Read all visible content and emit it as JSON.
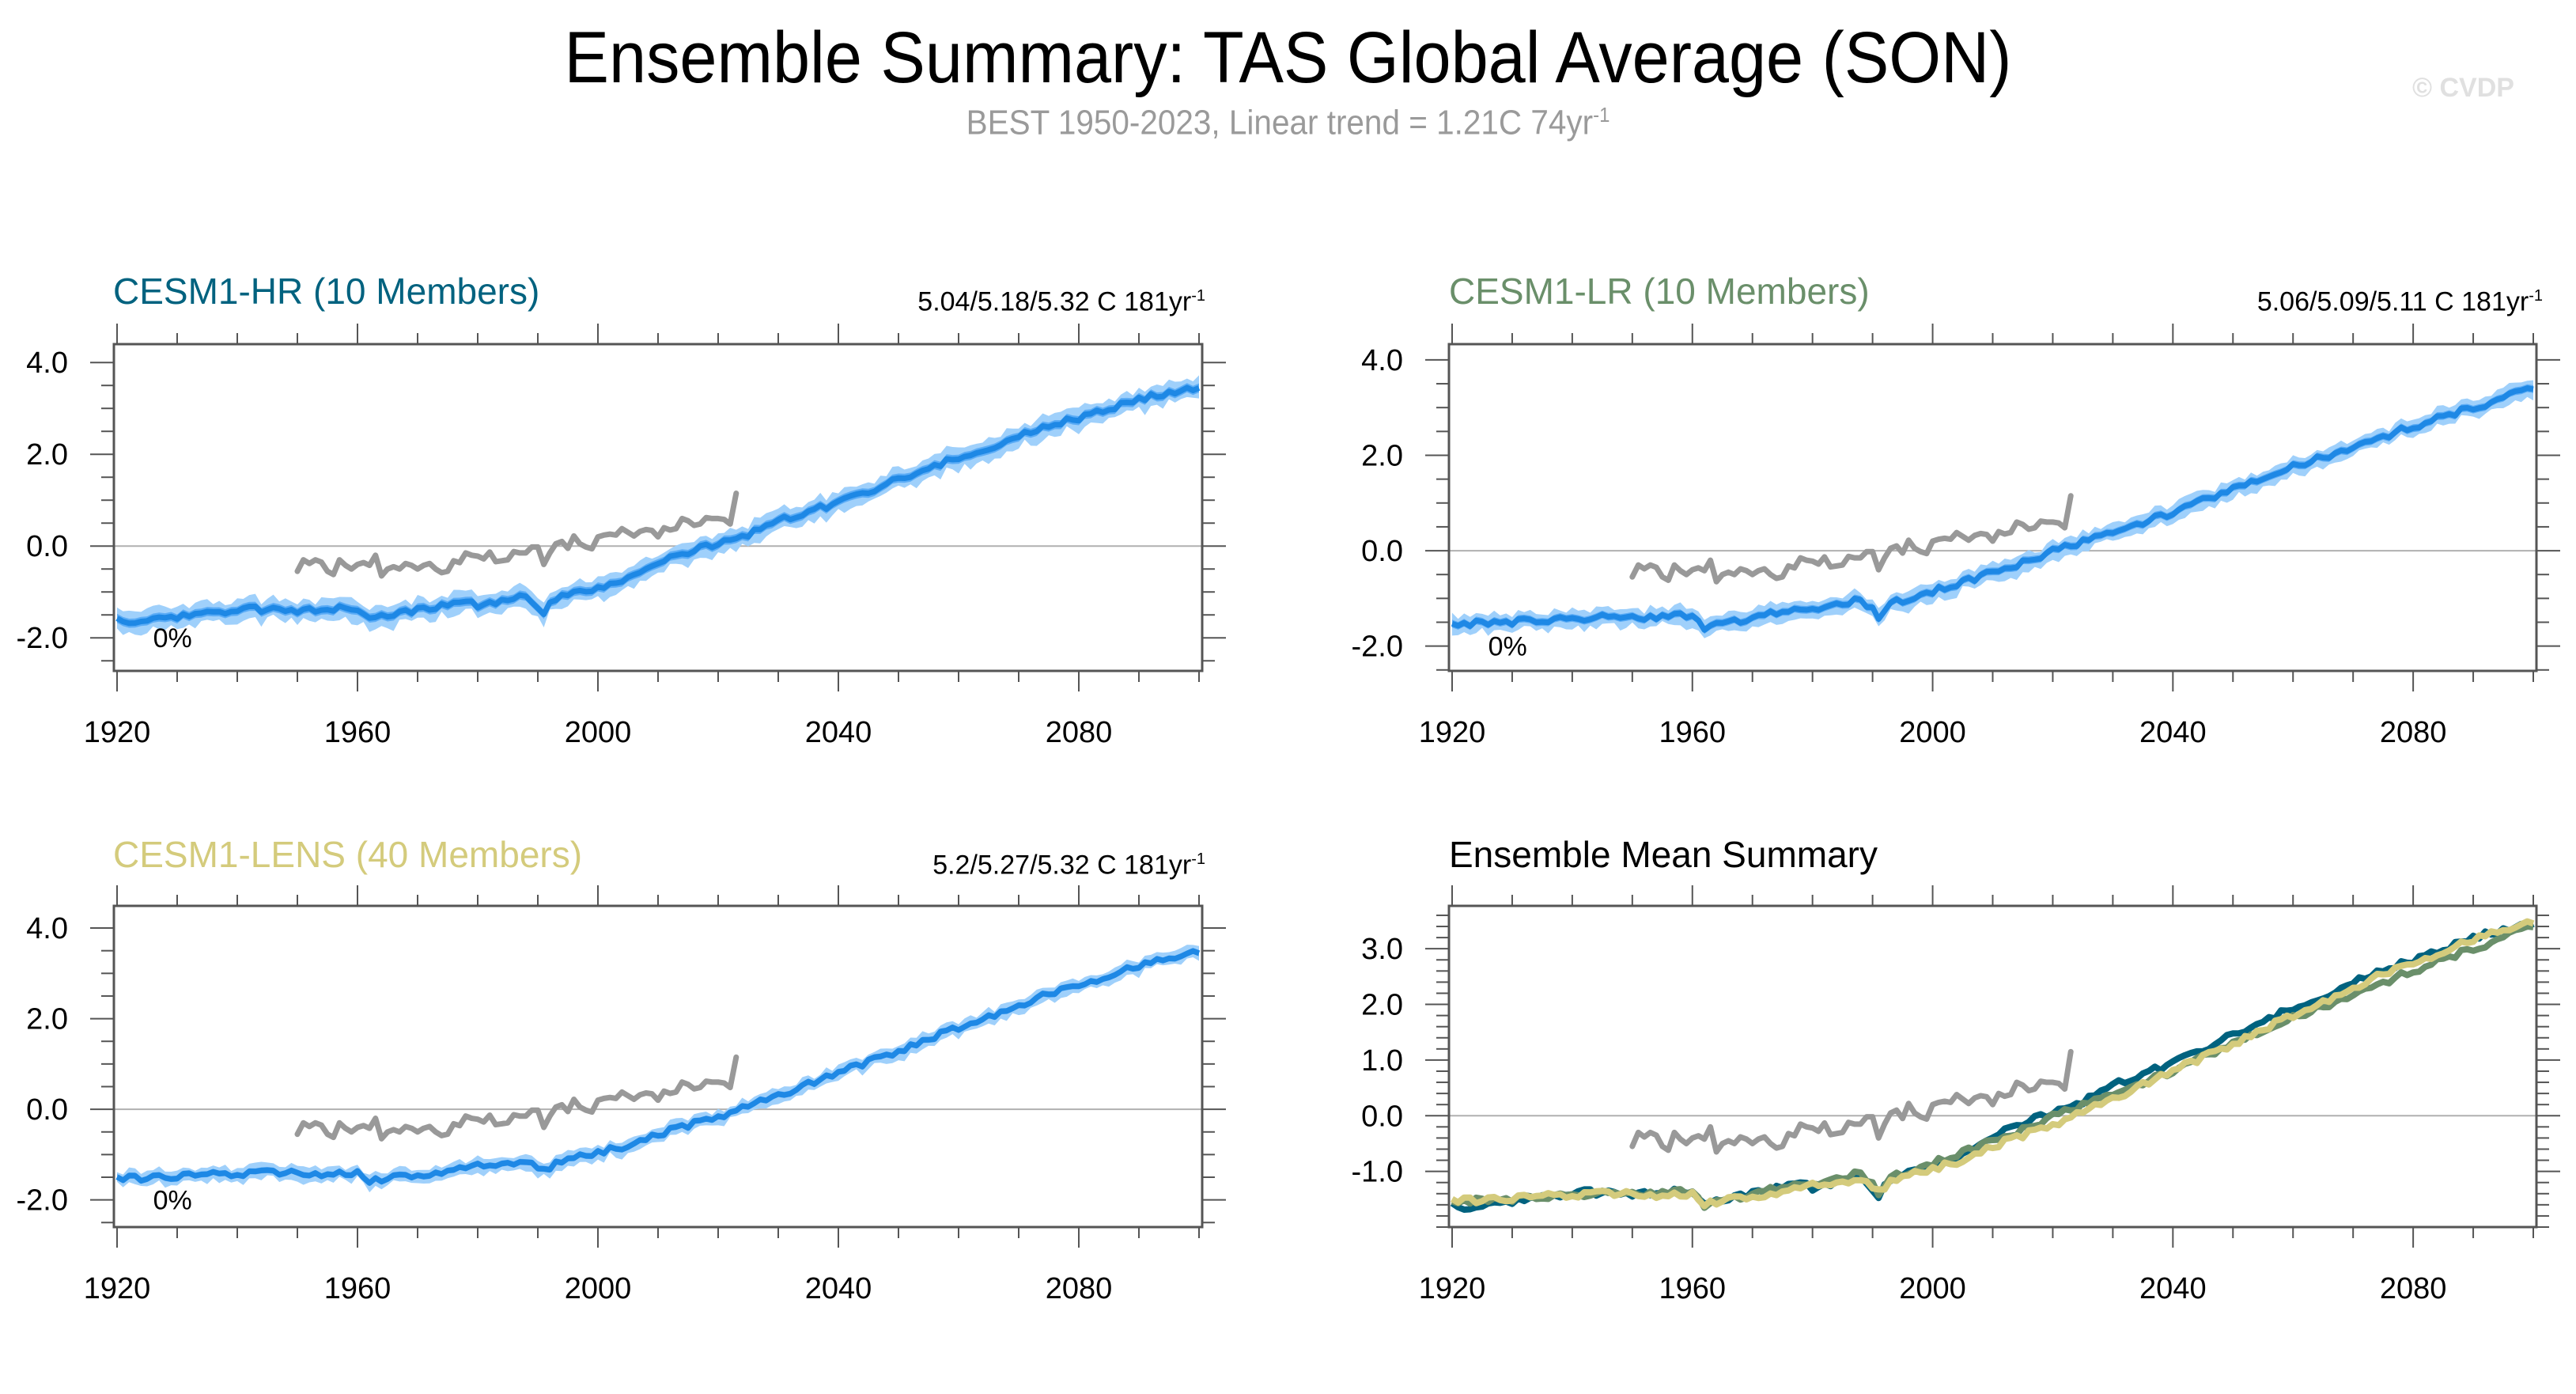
{
  "header": {
    "title": "Ensemble Summary: TAS Global Average (SON)",
    "subtitle_main": "BEST 1950-2023, Linear trend = 1.21C 74yr",
    "subtitle_sup": "-1",
    "watermark": "© CVDP"
  },
  "colors": {
    "spread_outer": "#9fd0fb",
    "spread_inner": "#4aa3f5",
    "mean_line": "#1e88e5",
    "obs_line": "#999999",
    "zero_line": "#b0b0b0",
    "axis": "#555555",
    "hr": "#00627f",
    "lr": "#6a8f6a",
    "lens": "#d4cb7c"
  },
  "chart_data": [
    {
      "type": "area",
      "id": "hr",
      "title": "CESM1-HR (10 Members)",
      "title_color": "#00627f",
      "stat_main": "5.04/5.18/5.32 C 181yr",
      "stat_sup": "-1",
      "annotation": "0%",
      "xlim": [
        1920,
        2100
      ],
      "ylim": [
        -2.72,
        4.4
      ],
      "x_ticks": [
        1920,
        1960,
        2000,
        2040,
        2080
      ],
      "y_ticks": [
        -2.0,
        0.0,
        2.0,
        4.0
      ],
      "y_tick_labels": [
        "-2.0",
        "0.0",
        "2.0",
        "4.0"
      ],
      "y_minor_step": 0.5,
      "mean": [
        [
          1920,
          -1.55
        ],
        [
          1922,
          -1.72
        ],
        [
          1926,
          -1.62
        ],
        [
          1930,
          -1.55
        ],
        [
          1935,
          -1.45
        ],
        [
          1940,
          -1.38
        ],
        [
          1945,
          -1.38
        ],
        [
          1950,
          -1.4
        ],
        [
          1955,
          -1.38
        ],
        [
          1960,
          -1.35
        ],
        [
          1962,
          -1.62
        ],
        [
          1966,
          -1.5
        ],
        [
          1970,
          -1.4
        ],
        [
          1975,
          -1.25
        ],
        [
          1978,
          -1.15
        ],
        [
          1980,
          -1.35
        ],
        [
          1985,
          -1.15
        ],
        [
          1988,
          -1.05
        ],
        [
          1991,
          -1.42
        ],
        [
          1993,
          -1.12
        ],
        [
          1997,
          -0.95
        ],
        [
          2000,
          -0.9
        ],
        [
          2005,
          -0.7
        ],
        [
          2010,
          -0.45
        ],
        [
          2013,
          -0.2
        ],
        [
          2016,
          -0.1
        ],
        [
          2020,
          0.05
        ],
        [
          2025,
          0.25
        ],
        [
          2030,
          0.55
        ],
        [
          2035,
          0.75
        ],
        [
          2040,
          0.95
        ],
        [
          2045,
          1.2
        ],
        [
          2050,
          1.45
        ],
        [
          2055,
          1.7
        ],
        [
          2060,
          1.95
        ],
        [
          2065,
          2.15
        ],
        [
          2070,
          2.4
        ],
        [
          2075,
          2.6
        ],
        [
          2080,
          2.8
        ],
        [
          2085,
          3.0
        ],
        [
          2090,
          3.2
        ],
        [
          2095,
          3.35
        ],
        [
          2100,
          3.45
        ]
      ],
      "spread": 0.22,
      "obs": [
        [
          1950,
          -0.55
        ],
        [
          1951,
          -0.3
        ],
        [
          1952,
          -0.38
        ],
        [
          1953,
          -0.3
        ],
        [
          1954,
          -0.35
        ],
        [
          1955,
          -0.55
        ],
        [
          1956,
          -0.62
        ],
        [
          1957,
          -0.3
        ],
        [
          1958,
          -0.42
        ],
        [
          1959,
          -0.5
        ],
        [
          1960,
          -0.4
        ],
        [
          1961,
          -0.36
        ],
        [
          1962,
          -0.42
        ],
        [
          1963,
          -0.2
        ],
        [
          1964,
          -0.65
        ],
        [
          1965,
          -0.5
        ],
        [
          1966,
          -0.45
        ],
        [
          1967,
          -0.5
        ],
        [
          1968,
          -0.38
        ],
        [
          1969,
          -0.42
        ],
        [
          1970,
          -0.5
        ],
        [
          1971,
          -0.42
        ],
        [
          1972,
          -0.38
        ],
        [
          1973,
          -0.5
        ],
        [
          1974,
          -0.58
        ],
        [
          1975,
          -0.55
        ],
        [
          1976,
          -0.32
        ],
        [
          1977,
          -0.36
        ],
        [
          1978,
          -0.15
        ],
        [
          1979,
          -0.2
        ],
        [
          1980,
          -0.22
        ],
        [
          1981,
          -0.28
        ],
        [
          1982,
          -0.13
        ],
        [
          1983,
          -0.34
        ],
        [
          1984,
          -0.32
        ],
        [
          1985,
          -0.3
        ],
        [
          1986,
          -0.12
        ],
        [
          1987,
          -0.15
        ],
        [
          1988,
          -0.15
        ],
        [
          1989,
          -0.02
        ],
        [
          1990,
          -0.02
        ],
        [
          1991,
          -0.4
        ],
        [
          1992,
          -0.15
        ],
        [
          1993,
          0.05
        ],
        [
          1994,
          0.1
        ],
        [
          1995,
          -0.05
        ],
        [
          1996,
          0.22
        ],
        [
          1997,
          0.05
        ],
        [
          1998,
          -0.02
        ],
        [
          1999,
          -0.06
        ],
        [
          2000,
          0.2
        ],
        [
          2001,
          0.24
        ],
        [
          2002,
          0.26
        ],
        [
          2003,
          0.24
        ],
        [
          2004,
          0.38
        ],
        [
          2005,
          0.3
        ],
        [
          2006,
          0.22
        ],
        [
          2007,
          0.32
        ],
        [
          2008,
          0.36
        ],
        [
          2009,
          0.34
        ],
        [
          2010,
          0.2
        ],
        [
          2011,
          0.4
        ],
        [
          2012,
          0.35
        ],
        [
          2013,
          0.38
        ],
        [
          2014,
          0.6
        ],
        [
          2015,
          0.55
        ],
        [
          2016,
          0.45
        ],
        [
          2017,
          0.48
        ],
        [
          2018,
          0.62
        ],
        [
          2019,
          0.6
        ],
        [
          2020,
          0.6
        ],
        [
          2021,
          0.58
        ],
        [
          2022,
          0.48
        ],
        [
          2023,
          1.15
        ]
      ]
    },
    {
      "type": "area",
      "id": "lr",
      "title": "CESM1-LR (10 Members)",
      "title_color": "#6a8f6a",
      "stat_main": "5.06/5.09/5.11 C 181yr",
      "stat_sup": "-1",
      "annotation": "0%",
      "xlim": [
        1920,
        2100
      ],
      "ylim": [
        -2.52,
        4.33
      ],
      "x_ticks": [
        1920,
        1960,
        2000,
        2040,
        2080
      ],
      "y_ticks": [
        -2.0,
        0.0,
        2.0,
        4.0
      ],
      "y_tick_labels": [
        "-2.0",
        "0.0",
        "2.0",
        "4.0"
      ],
      "y_minor_step": 0.5,
      "mean": [
        [
          1920,
          -1.58
        ],
        [
          1925,
          -1.52
        ],
        [
          1930,
          -1.5
        ],
        [
          1935,
          -1.45
        ],
        [
          1940,
          -1.42
        ],
        [
          1945,
          -1.4
        ],
        [
          1950,
          -1.38
        ],
        [
          1955,
          -1.4
        ],
        [
          1960,
          -1.35
        ],
        [
          1962,
          -1.6
        ],
        [
          1966,
          -1.5
        ],
        [
          1970,
          -1.4
        ],
        [
          1975,
          -1.3
        ],
        [
          1980,
          -1.2
        ],
        [
          1985,
          -1.1
        ],
        [
          1988,
          -0.98
        ],
        [
          1991,
          -1.38
        ],
        [
          1993,
          -1.12
        ],
        [
          1997,
          -0.95
        ],
        [
          2000,
          -0.85
        ],
        [
          2005,
          -0.65
        ],
        [
          2010,
          -0.45
        ],
        [
          2015,
          -0.25
        ],
        [
          2020,
          0.0
        ],
        [
          2025,
          0.2
        ],
        [
          2030,
          0.4
        ],
        [
          2035,
          0.6
        ],
        [
          2040,
          0.8
        ],
        [
          2045,
          1.05
        ],
        [
          2050,
          1.3
        ],
        [
          2055,
          1.5
        ],
        [
          2060,
          1.75
        ],
        [
          2065,
          1.95
        ],
        [
          2070,
          2.2
        ],
        [
          2075,
          2.4
        ],
        [
          2080,
          2.6
        ],
        [
          2085,
          2.8
        ],
        [
          2090,
          3.0
        ],
        [
          2095,
          3.2
        ],
        [
          2100,
          3.4
        ]
      ],
      "spread": 0.18,
      "obs_ref": "hr"
    },
    {
      "type": "area",
      "id": "lens",
      "title": "CESM1-LENS (40 Members)",
      "title_color": "#d4cb7c",
      "stat_main": "5.2/5.27/5.32 C 181yr",
      "stat_sup": "-1",
      "annotation": "0%",
      "xlim": [
        1920,
        2100
      ],
      "ylim": [
        -2.6,
        4.49
      ],
      "x_ticks": [
        1920,
        1960,
        2000,
        2040,
        2080
      ],
      "y_ticks": [
        -2.0,
        0.0,
        2.0,
        4.0
      ],
      "y_tick_labels": [
        "-2.0",
        "0.0",
        "2.0",
        "4.0"
      ],
      "y_minor_step": 0.5,
      "mean": [
        [
          1920,
          -1.5
        ],
        [
          1925,
          -1.52
        ],
        [
          1930,
          -1.5
        ],
        [
          1935,
          -1.45
        ],
        [
          1940,
          -1.42
        ],
        [
          1945,
          -1.4
        ],
        [
          1950,
          -1.38
        ],
        [
          1955,
          -1.45
        ],
        [
          1960,
          -1.42
        ],
        [
          1962,
          -1.6
        ],
        [
          1966,
          -1.52
        ],
        [
          1970,
          -1.45
        ],
        [
          1975,
          -1.4
        ],
        [
          1980,
          -1.25
        ],
        [
          1985,
          -1.2
        ],
        [
          1988,
          -1.1
        ],
        [
          1991,
          -1.38
        ],
        [
          1993,
          -1.15
        ],
        [
          1997,
          -1.0
        ],
        [
          2000,
          -0.95
        ],
        [
          2005,
          -0.8
        ],
        [
          2010,
          -0.55
        ],
        [
          2015,
          -0.35
        ],
        [
          2020,
          -0.15
        ],
        [
          2025,
          0.05
        ],
        [
          2030,
          0.3
        ],
        [
          2035,
          0.55
        ],
        [
          2040,
          0.8
        ],
        [
          2045,
          1.05
        ],
        [
          2050,
          1.3
        ],
        [
          2055,
          1.55
        ],
        [
          2060,
          1.8
        ],
        [
          2065,
          2.05
        ],
        [
          2070,
          2.3
        ],
        [
          2075,
          2.55
        ],
        [
          2080,
          2.75
        ],
        [
          2085,
          2.95
        ],
        [
          2090,
          3.15
        ],
        [
          2095,
          3.35
        ],
        [
          2100,
          3.5
        ]
      ],
      "spread": 0.15,
      "obs_ref": "hr"
    },
    {
      "type": "line",
      "id": "ensmean",
      "title": "Ensemble Mean Summary",
      "title_color": "#000000",
      "xlim": [
        1920,
        2100
      ],
      "ylim": [
        -2.0,
        3.77
      ],
      "x_ticks": [
        1920,
        1960,
        2000,
        2040,
        2080
      ],
      "y_ticks": [
        -1.0,
        0.0,
        1.0,
        2.0,
        3.0
      ],
      "y_tick_labels": [
        "-1.0",
        "0.0",
        "1.0",
        "2.0",
        "3.0"
      ],
      "y_minor_step": 0.2,
      "series": [
        {
          "name": "CESM1-HR",
          "color": "#00627f",
          "ref": "hr"
        },
        {
          "name": "CESM1-LR",
          "color": "#6a8f6a",
          "ref": "lr"
        },
        {
          "name": "CESM1-LENS",
          "color": "#d4cb7c",
          "ref": "lens"
        }
      ],
      "obs_ref": "hr"
    }
  ]
}
